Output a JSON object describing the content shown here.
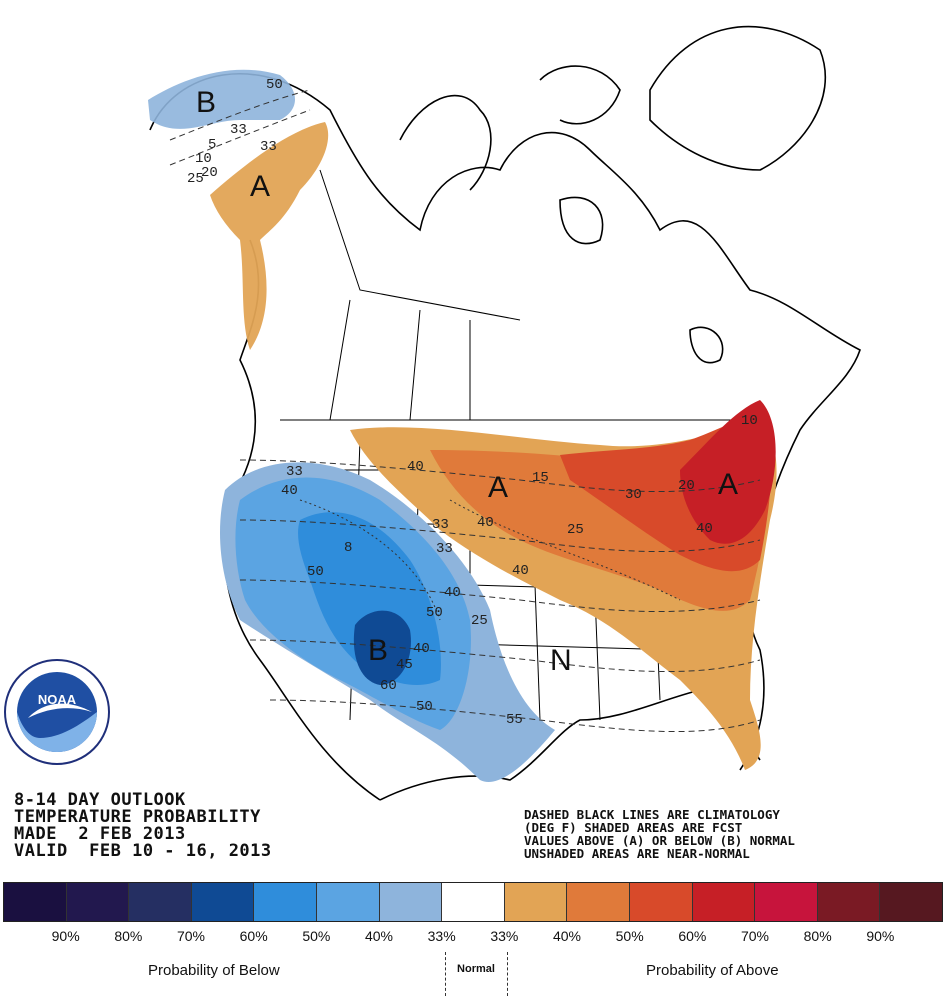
{
  "title_lines": [
    "8-14 DAY OUTLOOK",
    "TEMPERATURE PROBABILITY",
    "MADE  2 FEB 2013",
    "VALID  FEB 10 - 16, 2013"
  ],
  "notes_lines": [
    "DASHED BLACK LINES ARE CLIMATOLOGY",
    "(DEG F) SHADED AREAS ARE FCST",
    "VALUES ABOVE (A) OR BELOW (B) NORMAL",
    "UNSHADED AREAS ARE NEAR-NORMAL"
  ],
  "region_labels": {
    "alaska_below": "B",
    "alaska_above": "A",
    "north_central_above": "A",
    "northeast_above": "A",
    "southwest_below": "B",
    "south_normal": "N"
  },
  "contour_labels": {
    "ak_50": "50",
    "ak_33a": "33",
    "ak_33b": "33",
    "ak_5": "5",
    "ak_10": "10",
    "ak_20": "20",
    "ak_25": "25",
    "nw_33": "33",
    "nw_40": "40",
    "sw_50a": "50",
    "sw_8": "8",
    "sw_40a": "40",
    "sw_50b": "50",
    "sw_40b": "40",
    "sw_45": "45",
    "sw_60": "60",
    "sw_50c": "50",
    "sw_55": "55",
    "pl_33a": "33",
    "pl_33b": "33",
    "pl_40": "40",
    "pl_25": "25",
    "nc_40a": "40",
    "nc_40b": "40",
    "nc_15": "15",
    "nc_25": "25",
    "nc_30": "30",
    "nc_20": "20",
    "ne_40": "40",
    "ne_10": "10"
  },
  "legend": {
    "colors": [
      "#1a1040",
      "#22184e",
      "#252f62",
      "#0f4a94",
      "#2f8ddb",
      "#5ba4e2",
      "#8eb4dc",
      "#ffffff",
      "#e2a455",
      "#e07a3a",
      "#d84a2a",
      "#c61f26",
      "#c7143c",
      "#7a1a24",
      "#561820"
    ],
    "tick_labels": [
      "90%",
      "80%",
      "70%",
      "60%",
      "50%",
      "40%",
      "33%",
      "33%",
      "40%",
      "50%",
      "60%",
      "70%",
      "80%",
      "90%"
    ],
    "below_label": "Probability of Below",
    "normal_label": "Normal",
    "above_label": "Probability of Above"
  },
  "logo": {
    "text": "NOAA",
    "ring_text": "NATIONAL OCEANIC AND ATMOSPHERIC ADMINISTRATION · U.S. DEPARTMENT OF COMMERCE"
  }
}
